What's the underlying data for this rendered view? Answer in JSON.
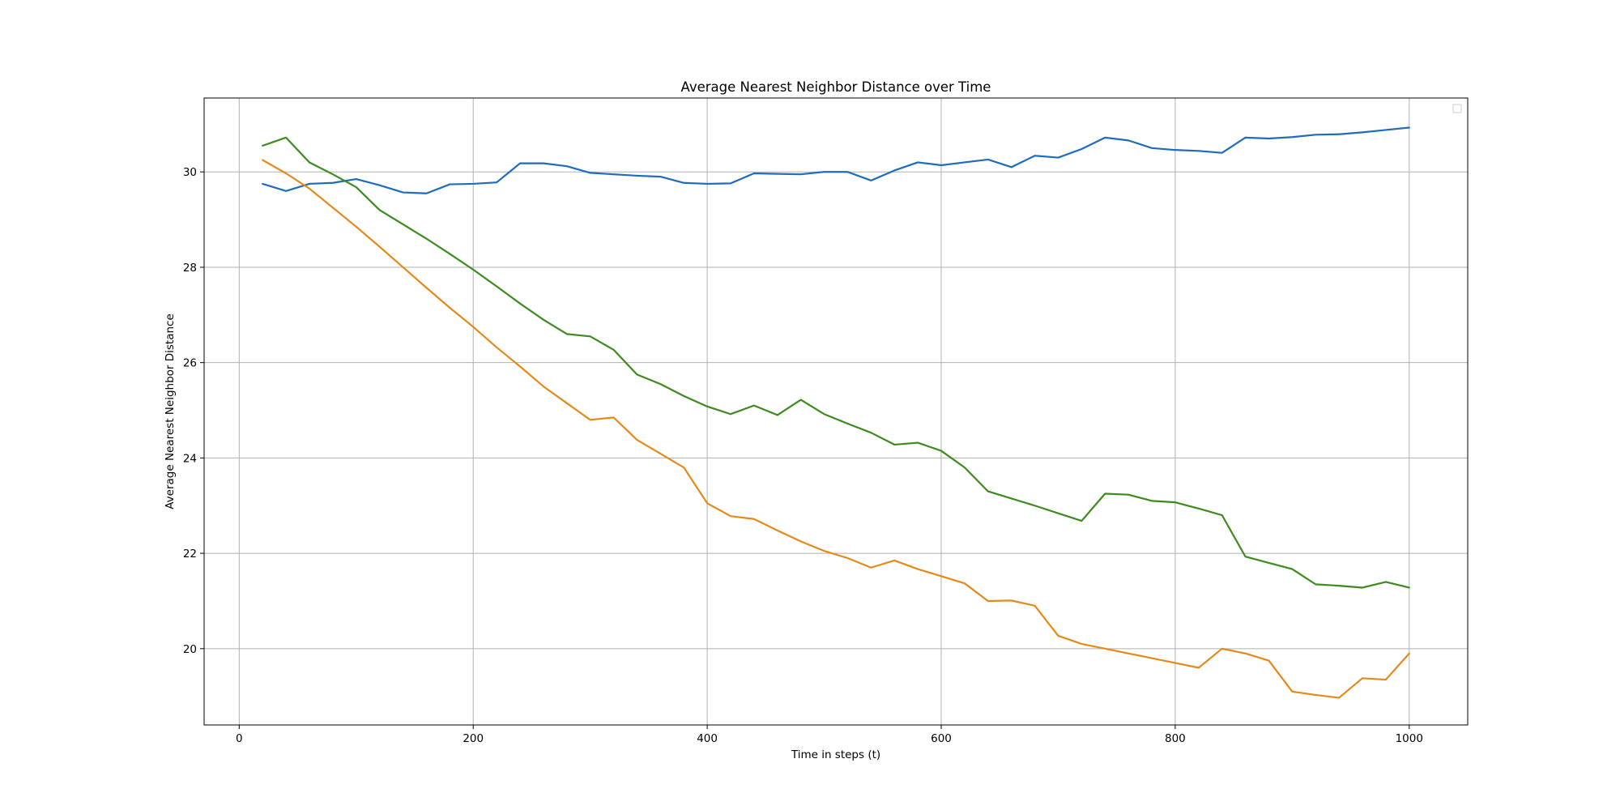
{
  "chart_data": {
    "type": "line",
    "title": "Average Nearest Neighbor Distance over Time",
    "xlabel": "Time in steps (t)",
    "ylabel": "Average Nearest Neighbor Distance",
    "xlim": [
      -30,
      1050
    ],
    "ylim": [
      18.4,
      31.55
    ],
    "xticks": [
      0,
      200,
      400,
      600,
      800,
      1000
    ],
    "yticks": [
      20,
      22,
      24,
      26,
      28,
      30
    ],
    "grid": true,
    "legend": "upper-right (empty)",
    "x": [
      20,
      40,
      60,
      80,
      100,
      120,
      140,
      160,
      180,
      200,
      220,
      240,
      260,
      280,
      300,
      320,
      340,
      360,
      380,
      400,
      420,
      440,
      460,
      480,
      500,
      520,
      540,
      560,
      580,
      600,
      620,
      640,
      660,
      680,
      700,
      720,
      740,
      760,
      780,
      800,
      820,
      840,
      860,
      880,
      900,
      920,
      940,
      960,
      980,
      1000
    ],
    "series": [
      {
        "color": "#1f6bbd",
        "values": [
          29.75,
          29.6,
          29.75,
          29.77,
          29.85,
          29.72,
          29.57,
          29.55,
          29.74,
          29.75,
          29.78,
          30.18,
          30.18,
          30.12,
          29.98,
          29.95,
          29.92,
          29.9,
          29.77,
          29.75,
          29.76,
          29.97,
          29.96,
          29.95,
          30.0,
          30.0,
          29.82,
          30.03,
          30.2,
          30.14,
          30.2,
          30.26,
          30.1,
          30.34,
          30.3,
          30.48,
          30.72,
          30.66,
          30.5,
          30.46,
          30.44,
          30.4,
          30.72,
          30.7,
          30.73,
          30.78,
          30.79,
          30.83,
          30.88,
          30.93
        ]
      },
      {
        "color": "#e48a1a",
        "values": [
          30.25,
          29.97,
          29.65,
          29.25,
          28.85,
          28.43,
          28.0,
          27.57,
          27.15,
          26.75,
          26.32,
          25.92,
          25.5,
          25.15,
          24.8,
          24.85,
          24.38,
          24.09,
          23.8,
          23.05,
          22.78,
          22.72,
          22.48,
          22.25,
          22.05,
          21.9,
          21.7,
          21.85,
          21.67,
          21.52,
          21.37,
          21.0,
          21.01,
          20.9,
          20.27,
          20.1,
          20.0,
          19.9,
          19.8,
          19.7,
          19.6,
          20.0,
          19.9,
          19.75,
          19.1,
          19.03,
          18.97,
          19.38,
          19.35,
          19.9
        ]
      },
      {
        "color": "#3d8a1e",
        "values": [
          30.55,
          30.72,
          30.2,
          29.95,
          29.68,
          29.2,
          28.9,
          28.6,
          28.28,
          27.95,
          27.6,
          27.24,
          26.9,
          26.6,
          26.55,
          26.27,
          25.75,
          25.55,
          25.3,
          25.08,
          24.92,
          25.1,
          24.9,
          25.22,
          24.92,
          24.72,
          24.53,
          24.28,
          24.32,
          24.15,
          23.8,
          23.3,
          23.15,
          23.0,
          22.84,
          22.68,
          23.25,
          23.23,
          23.1,
          23.07,
          22.94,
          22.8,
          21.93,
          21.8,
          21.67,
          21.35,
          21.32,
          21.28,
          21.4,
          21.28
        ]
      }
    ]
  }
}
